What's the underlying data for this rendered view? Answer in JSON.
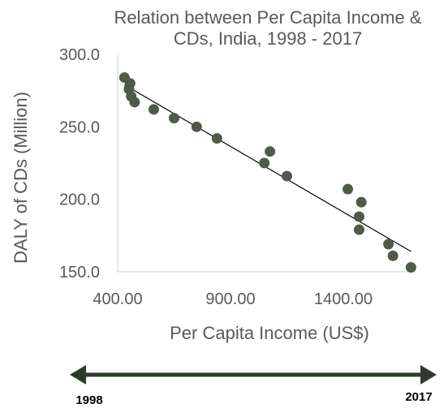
{
  "chart_data": {
    "type": "scatter",
    "title_lines": [
      "Relation between Per Capita Income &",
      "CDs, India, 1998 - 2017"
    ],
    "xlabel": "Per Capita Income (US$)",
    "ylabel": "DALY of CDs (Million)",
    "xlim": [
      400,
      1720
    ],
    "ylim": [
      150,
      300
    ],
    "x_ticks": [
      400,
      900,
      1400
    ],
    "x_tick_labels": [
      "400.00",
      "900.00",
      "1400.00"
    ],
    "y_ticks": [
      150,
      200,
      250,
      300
    ],
    "y_tick_labels": [
      "150.0",
      "200.0",
      "250.0",
      "300.0"
    ],
    "grid": false,
    "marker_color": "#4f5a4a",
    "trendline": {
      "type": "linear",
      "color": "#000000",
      "x": [
        430,
        1700
      ],
      "y": [
        279,
        164
      ]
    },
    "points": [
      {
        "x": 430,
        "y": 284
      },
      {
        "x": 450,
        "y": 276
      },
      {
        "x": 455,
        "y": 280
      },
      {
        "x": 460,
        "y": 271
      },
      {
        "x": 475,
        "y": 267
      },
      {
        "x": 560,
        "y": 262
      },
      {
        "x": 650,
        "y": 256
      },
      {
        "x": 750,
        "y": 250
      },
      {
        "x": 840,
        "y": 242
      },
      {
        "x": 1050,
        "y": 225
      },
      {
        "x": 1075,
        "y": 233
      },
      {
        "x": 1150,
        "y": 216
      },
      {
        "x": 1420,
        "y": 207
      },
      {
        "x": 1470,
        "y": 188
      },
      {
        "x": 1470,
        "y": 179
      },
      {
        "x": 1480,
        "y": 198
      },
      {
        "x": 1600,
        "y": 169
      },
      {
        "x": 1620,
        "y": 161
      },
      {
        "x": 1700,
        "y": 153
      }
    ]
  },
  "timeline": {
    "start_label": "1998",
    "end_label": "2017",
    "color": "#2e3b2c"
  }
}
